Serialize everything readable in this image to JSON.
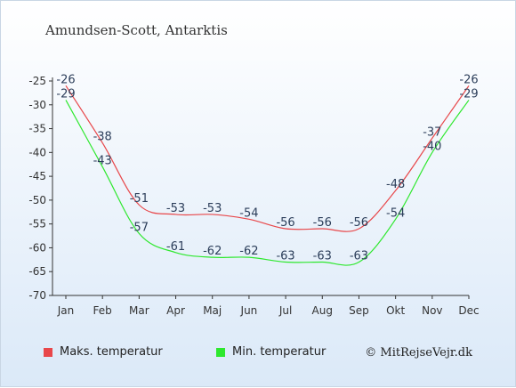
{
  "title": "Amundsen-Scott, Antarktis",
  "credit": "© MitRejseVejr.dk",
  "legend": {
    "max_label": "Maks. temperatur",
    "min_label": "Min. temperatur",
    "max_color": "#e8474a",
    "min_color": "#2ee82e"
  },
  "chart_data": {
    "type": "line",
    "categories": [
      "Jan",
      "Feb",
      "Mar",
      "Apr",
      "Maj",
      "Jun",
      "Jul",
      "Aug",
      "Sep",
      "Okt",
      "Nov",
      "Dec"
    ],
    "series": [
      {
        "name": "Maks. temperatur",
        "color": "#e8474a",
        "values": [
          -26,
          -38,
          -51,
          -53,
          -53,
          -54,
          -56,
          -56,
          -56,
          -48,
          -37,
          -26
        ]
      },
      {
        "name": "Min. temperatur",
        "color": "#2ee82e",
        "values": [
          -29,
          -43,
          -57,
          -61,
          -62,
          -62,
          -63,
          -63,
          -63,
          -54,
          -40,
          -29
        ]
      }
    ],
    "yticks": [
      -25,
      -30,
      -35,
      -40,
      -45,
      -50,
      -55,
      -60,
      -65,
      -70
    ],
    "ylim": [
      -70,
      -25
    ],
    "grid": false,
    "legend_position": "bottom-left"
  }
}
